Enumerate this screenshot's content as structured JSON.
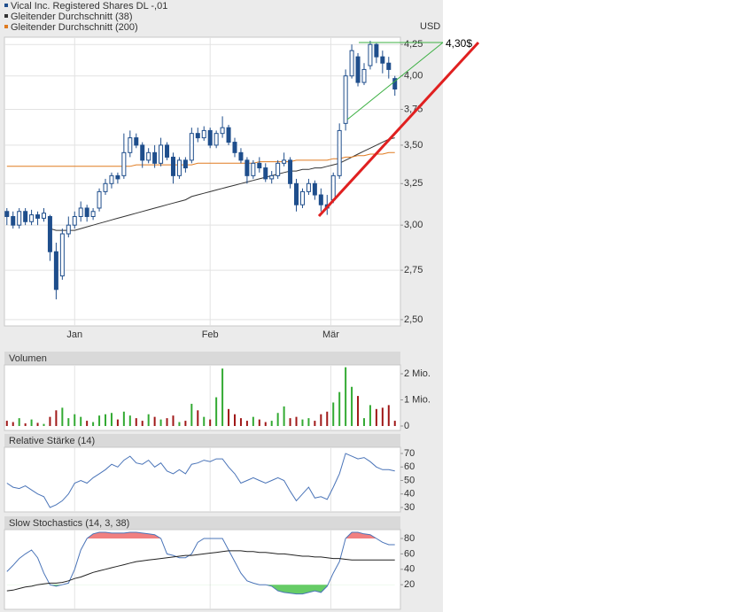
{
  "chart_data": [
    {
      "type": "candlestick",
      "name": "Vical Inc. Registered Shares DL -,01",
      "color": "#1f4e8c",
      "up_fill": "#ffffff",
      "candles": [
        [
          3.08,
          3.1,
          3.0,
          3.05
        ],
        [
          3.05,
          3.08,
          2.98,
          3.0
        ],
        [
          3.0,
          3.1,
          2.98,
          3.08
        ],
        [
          3.08,
          3.1,
          3.0,
          3.02
        ],
        [
          3.02,
          3.09,
          3.0,
          3.06
        ],
        [
          3.06,
          3.08,
          3.0,
          3.04
        ],
        [
          3.04,
          3.1,
          3.02,
          3.07
        ],
        [
          3.05,
          3.06,
          2.8,
          2.85
        ],
        [
          2.85,
          2.9,
          2.6,
          2.65
        ],
        [
          2.72,
          2.98,
          2.7,
          2.95
        ],
        [
          2.95,
          3.05,
          2.93,
          3.0
        ],
        [
          3.0,
          3.08,
          2.98,
          3.05
        ],
        [
          3.05,
          3.14,
          3.02,
          3.1
        ],
        [
          3.1,
          3.12,
          3.02,
          3.05
        ],
        [
          3.05,
          3.1,
          3.03,
          3.08
        ],
        [
          3.1,
          3.22,
          3.08,
          3.2
        ],
        [
          3.2,
          3.28,
          3.18,
          3.25
        ],
        [
          3.25,
          3.32,
          3.22,
          3.3
        ],
        [
          3.3,
          3.32,
          3.25,
          3.28
        ],
        [
          3.3,
          3.58,
          3.28,
          3.45
        ],
        [
          3.45,
          3.6,
          3.42,
          3.55
        ],
        [
          3.55,
          3.58,
          3.48,
          3.5
        ],
        [
          3.5,
          3.52,
          3.35,
          3.4
        ],
        [
          3.4,
          3.48,
          3.38,
          3.45
        ],
        [
          3.45,
          3.5,
          3.35,
          3.38
        ],
        [
          3.38,
          3.55,
          3.36,
          3.5
        ],
        [
          3.5,
          3.52,
          3.4,
          3.42
        ],
        [
          3.42,
          3.45,
          3.25,
          3.3
        ],
        [
          3.3,
          3.42,
          3.28,
          3.4
        ],
        [
          3.4,
          3.42,
          3.32,
          3.35
        ],
        [
          3.4,
          3.62,
          3.38,
          3.58
        ],
        [
          3.58,
          3.62,
          3.52,
          3.55
        ],
        [
          3.55,
          3.63,
          3.53,
          3.6
        ],
        [
          3.6,
          3.62,
          3.48,
          3.5
        ],
        [
          3.5,
          3.6,
          3.48,
          3.58
        ],
        [
          3.58,
          3.7,
          3.55,
          3.62
        ],
        [
          3.62,
          3.64,
          3.5,
          3.52
        ],
        [
          3.52,
          3.55,
          3.42,
          3.45
        ],
        [
          3.45,
          3.48,
          3.38,
          3.4
        ],
        [
          3.4,
          3.42,
          3.25,
          3.3
        ],
        [
          3.3,
          3.4,
          3.28,
          3.38
        ],
        [
          3.38,
          3.42,
          3.32,
          3.35
        ],
        [
          3.35,
          3.38,
          3.26,
          3.28
        ],
        [
          3.28,
          3.33,
          3.25,
          3.3
        ],
        [
          3.3,
          3.4,
          3.28,
          3.38
        ],
        [
          3.38,
          3.45,
          3.36,
          3.4
        ],
        [
          3.4,
          3.42,
          3.22,
          3.25
        ],
        [
          3.25,
          3.28,
          3.08,
          3.12
        ],
        [
          3.12,
          3.22,
          3.1,
          3.2
        ],
        [
          3.2,
          3.28,
          3.18,
          3.25
        ],
        [
          3.25,
          3.27,
          3.15,
          3.18
        ],
        [
          3.18,
          3.22,
          3.08,
          3.12
        ],
        [
          3.12,
          3.18,
          3.06,
          3.1
        ],
        [
          3.15,
          3.32,
          3.13,
          3.3
        ],
        [
          3.3,
          3.65,
          3.28,
          3.6
        ],
        [
          3.65,
          4.05,
          3.6,
          4.0
        ],
        [
          4.0,
          4.25,
          3.98,
          4.2
        ],
        [
          4.15,
          4.18,
          3.92,
          3.95
        ],
        [
          3.95,
          4.1,
          3.93,
          4.05
        ],
        [
          4.08,
          4.28,
          4.05,
          4.25
        ],
        [
          4.25,
          4.26,
          4.1,
          4.15
        ],
        [
          4.15,
          4.2,
          4.02,
          4.1
        ],
        [
          4.1,
          4.15,
          3.98,
          4.05
        ],
        [
          3.98,
          4.0,
          3.85,
          3.9
        ]
      ],
      "series": [
        {
          "name": "Gleitender Durchschnitt (38)",
          "color": "#333333",
          "values": [
            null,
            null,
            null,
            null,
            null,
            null,
            null,
            2.98,
            2.97,
            2.97,
            2.97,
            2.97,
            2.98,
            2.99,
            3.0,
            3.01,
            3.02,
            3.03,
            3.04,
            3.05,
            3.06,
            3.07,
            3.08,
            3.09,
            3.1,
            3.11,
            3.12,
            3.13,
            3.14,
            3.15,
            3.17,
            3.18,
            3.19,
            3.2,
            3.21,
            3.22,
            3.23,
            3.24,
            3.25,
            3.26,
            3.27,
            3.28,
            3.29,
            3.3,
            3.31,
            3.32,
            3.33,
            3.33,
            3.34,
            3.34,
            3.35,
            3.35,
            3.36,
            3.37,
            3.38,
            3.4,
            3.42,
            3.44,
            3.46,
            3.48,
            3.5,
            3.52,
            3.54,
            3.55
          ]
        },
        {
          "name": "Gleitender Durchschnitt (200)",
          "color": "#e07b20",
          "values": [
            3.36,
            3.36,
            3.36,
            3.36,
            3.36,
            3.36,
            3.36,
            3.36,
            3.36,
            3.36,
            3.36,
            3.36,
            3.36,
            3.36,
            3.36,
            3.36,
            3.36,
            3.36,
            3.36,
            3.36,
            3.36,
            3.37,
            3.37,
            3.37,
            3.37,
            3.37,
            3.37,
            3.37,
            3.37,
            3.37,
            3.37,
            3.38,
            3.38,
            3.38,
            3.38,
            3.38,
            3.38,
            3.38,
            3.38,
            3.38,
            3.38,
            3.39,
            3.39,
            3.39,
            3.39,
            3.39,
            3.39,
            3.4,
            3.4,
            3.4,
            3.4,
            3.4,
            3.4,
            3.41,
            3.41,
            3.42,
            3.42,
            3.43,
            3.43,
            3.44,
            3.44,
            3.44,
            3.45,
            3.45
          ]
        }
      ],
      "xlim": [
        -0.4,
        63.9
      ],
      "xticks": [
        {
          "value": 11,
          "label": "Jan"
        },
        {
          "value": 33,
          "label": "Feb"
        },
        {
          "value": 52.6,
          "label": "Mär"
        }
      ],
      "ylim": [
        2.47,
        4.31
      ],
      "log_scale": true,
      "grid": true,
      "y_unit": "USD",
      "yticks": [
        {
          "value": 2.5,
          "label": "2,50"
        },
        {
          "value": 2.75,
          "label": "2,75"
        },
        {
          "value": 3,
          "label": "3,00"
        },
        {
          "value": 3.25,
          "label": "3,25"
        },
        {
          "value": 3.5,
          "label": "3,50"
        },
        {
          "value": 3.75,
          "label": "3,75"
        },
        {
          "value": 4,
          "label": "4,00"
        },
        {
          "value": 4.25,
          "label": "4,25"
        }
      ],
      "annotation": "4,30$"
    },
    {
      "type": "bar",
      "title": "Volumen",
      "up_color": "#33aa33",
      "down_color": "#a01818",
      "values": [
        200000,
        150000,
        300000,
        100000,
        250000,
        120000,
        80000,
        350000,
        600000,
        700000,
        300000,
        450000,
        350000,
        200000,
        150000,
        400000,
        450000,
        500000,
        250000,
        550000,
        400000,
        300000,
        200000,
        450000,
        350000,
        250000,
        300000,
        400000,
        150000,
        200000,
        850000,
        600000,
        350000,
        250000,
        1100000,
        2200000,
        650000,
        450000,
        300000,
        200000,
        350000,
        250000,
        150000,
        200000,
        500000,
        750000,
        300000,
        350000,
        250000,
        300000,
        200000,
        450000,
        550000,
        900000,
        1300000,
        2250000,
        1500000,
        1150000,
        300000,
        800000,
        650000,
        700000,
        800000,
        200000
      ],
      "ylim": [
        -170000,
        2340000
      ],
      "yticks": [
        0,
        {
          "value": 1000000,
          "label": "1 Mio."
        },
        {
          "value": 2000000,
          "label": "2 Mio."
        }
      ]
    },
    {
      "type": "line",
      "title": "Relative Stärke (14)",
      "series": [
        {
          "color": "#4a74b8",
          "values": [
            48,
            45,
            44,
            46,
            43,
            40,
            38,
            30,
            32,
            35,
            40,
            48,
            50,
            48,
            52,
            55,
            58,
            62,
            60,
            65,
            68,
            63,
            62,
            65,
            60,
            63,
            57,
            55,
            58,
            55,
            62,
            63,
            65,
            64,
            66,
            66,
            60,
            55,
            48,
            50,
            52,
            50,
            48,
            50,
            52,
            50,
            42,
            35,
            40,
            45,
            37,
            38,
            36,
            45,
            55,
            70,
            68,
            66,
            67,
            64,
            60,
            58,
            58,
            57
          ]
        }
      ],
      "ylim": [
        26.7,
        74.6
      ],
      "yticks": [
        30,
        40,
        50,
        60,
        70
      ]
    },
    {
      "type": "stochastic",
      "title": "Slow Stochastics (14, 3, 38)",
      "overbought_color": "#f08080",
      "oversold_color": "#66cc66",
      "series": [
        {
          "color": "#4a74b8",
          "values": [
            37,
            45,
            54,
            60,
            65,
            55,
            35,
            20,
            18,
            20,
            22,
            40,
            65,
            80,
            86,
            88,
            88,
            87,
            87,
            87,
            88,
            88,
            87,
            86,
            85,
            80,
            60,
            58,
            55,
            55,
            60,
            75,
            80,
            80,
            80,
            80,
            65,
            50,
            35,
            25,
            22,
            20,
            20,
            18,
            12,
            10,
            9,
            8,
            8,
            10,
            12,
            10,
            18,
            35,
            50,
            80,
            88,
            88,
            86,
            85,
            80,
            75,
            72,
            72
          ]
        },
        {
          "color": "#222222",
          "values": [
            12,
            13,
            15,
            17,
            18,
            20,
            21,
            22,
            22,
            23,
            25,
            28,
            30,
            33,
            36,
            38,
            40,
            42,
            44,
            46,
            48,
            50,
            51,
            52,
            53,
            54,
            55,
            56,
            57,
            58,
            58,
            59,
            60,
            61,
            62,
            63,
            64,
            64,
            64,
            63,
            63,
            62,
            62,
            61,
            60,
            60,
            59,
            58,
            57,
            57,
            56,
            56,
            55,
            54,
            54,
            53,
            52,
            52,
            52,
            52,
            52,
            52,
            52,
            52
          ]
        }
      ],
      "ylim": [
        -12,
        91.5
      ],
      "yticks": [
        20,
        40,
        60,
        80
      ]
    }
  ]
}
